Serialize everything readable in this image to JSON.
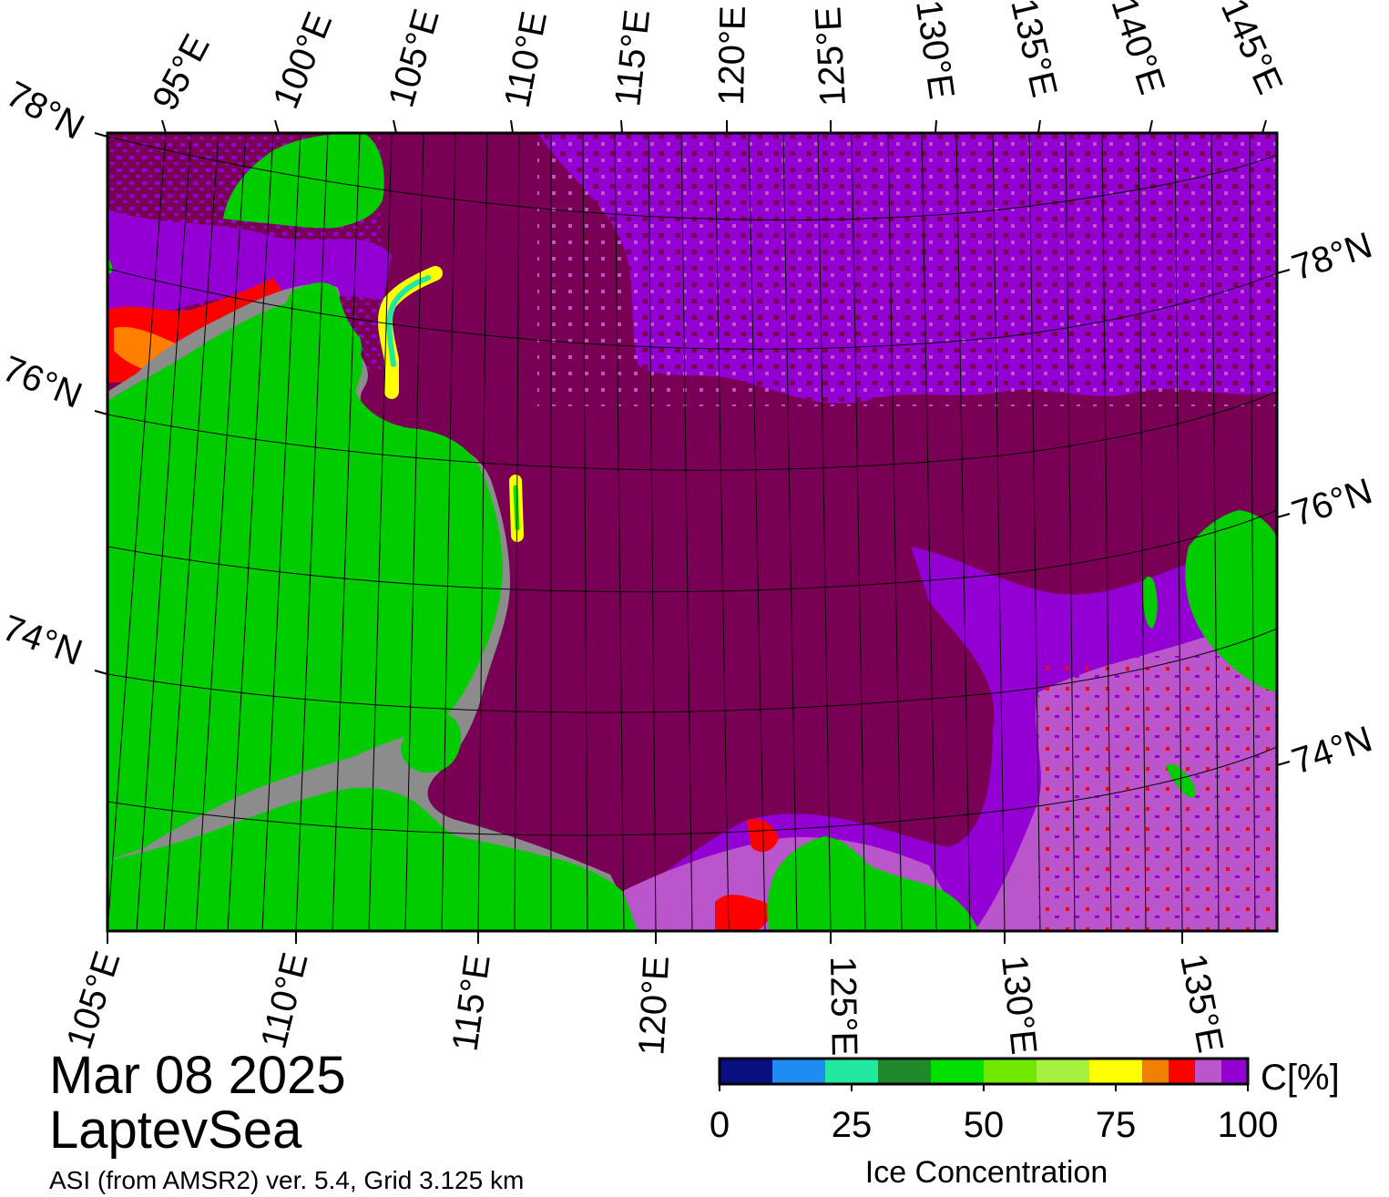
{
  "map": {
    "date": "Mar 08 2025",
    "region": "LaptevSea",
    "source": "ASI (from AMSR2) ver. 5.4,  Grid 3.125 km",
    "top_lon_labels": [
      "95°E",
      "100°E",
      "105°E",
      "110°E",
      "115°E",
      "120°E",
      "125°E",
      "130°E",
      "135°E",
      "140°E",
      "145°E"
    ],
    "left_lat_labels": [
      "78°N",
      "76°N",
      "74°N"
    ],
    "right_lat_labels": [
      "78°N",
      "76°N",
      "74°N"
    ],
    "bottom_lon_labels": [
      "105°E",
      "110°E",
      "115°E",
      "120°E",
      "125°E",
      "130°E",
      "135°E"
    ],
    "colors": {
      "land": "#00cc00",
      "coast_grey": "#8c8c8c",
      "ice_100": "#7a0055",
      "ice_95": "#9400d3",
      "ice_90": "#bb55cc",
      "ice_85": "#ff0000",
      "ice_80": "#ff8000"
    }
  },
  "colorbar": {
    "unit_label": "C[%]",
    "title": "Ice Concentration",
    "tick_labels": [
      "0",
      "25",
      "50",
      "75",
      "100"
    ],
    "ticks": [
      0,
      25,
      50,
      75,
      100
    ],
    "min": 0,
    "max": 100,
    "colors": [
      "#0a0f80",
      "#1e8cf0",
      "#20e8a0",
      "#208a2a",
      "#00e000",
      "#70e800",
      "#a8f040",
      "#ffff00",
      "#f08000",
      "#ff0000",
      "#bb55cc",
      "#9400d3"
    ],
    "bounds": [
      0,
      10,
      20,
      30,
      40,
      50,
      60,
      70,
      80,
      85,
      90,
      95,
      100
    ]
  }
}
